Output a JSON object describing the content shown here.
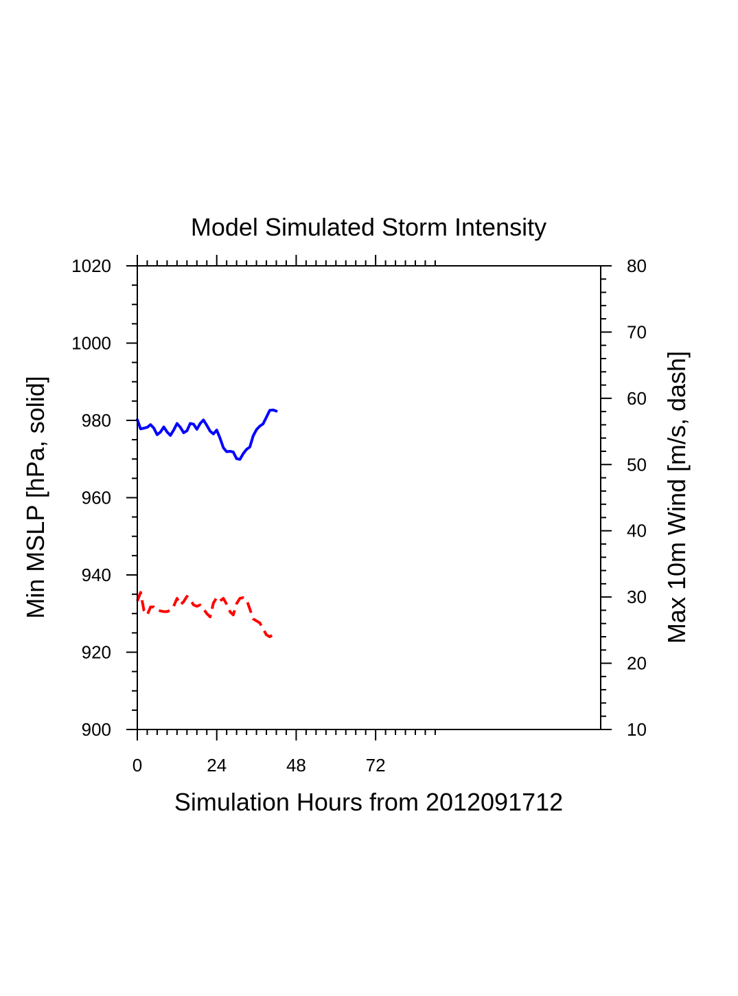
{
  "chart_data": {
    "type": "line",
    "title": "Model Simulated Storm Intensity",
    "xlabel": "Simulation Hours from 2012091712",
    "ylabel_left": "Min MSLP  [hPa, solid]",
    "ylabel_right": "Max 10m Wind  [m/s, dash]",
    "xlim": [
      0,
      140
    ],
    "ylim_left": [
      900,
      1020
    ],
    "ylim_right": [
      10,
      80
    ],
    "x_ticks": [
      0,
      24,
      48,
      72
    ],
    "x_tick_labels": [
      "0",
      "24",
      "48",
      "72"
    ],
    "y_left_ticks": [
      900,
      920,
      940,
      960,
      980,
      1000,
      1020
    ],
    "y_left_tick_labels": [
      "900",
      "920",
      "940",
      "960",
      "980",
      "1000",
      "1020"
    ],
    "y_right_ticks": [
      10,
      20,
      30,
      40,
      50,
      60,
      70,
      80
    ],
    "y_right_tick_labels": [
      "10",
      "20",
      "30",
      "40",
      "50",
      "60",
      "70",
      "80"
    ],
    "colors": {
      "mslp": "#0000ff",
      "wind": "#ff0000",
      "axes": "#000000"
    },
    "series": [
      {
        "name": "Min MSLP",
        "axis": "left",
        "style": "solid",
        "x": [
          0,
          1,
          2,
          3,
          4,
          5,
          6,
          7,
          8,
          9,
          10,
          11,
          12,
          13,
          14,
          15,
          16,
          17,
          18,
          19,
          20,
          21,
          22,
          23,
          24,
          25,
          26,
          27,
          28,
          29,
          30,
          31,
          32,
          33,
          34,
          35,
          36,
          37,
          38,
          39,
          40,
          41,
          42
        ],
        "values": [
          980.2,
          977.8,
          978.0,
          978.2,
          978.9,
          978.0,
          976.3,
          977.0,
          978.3,
          977.0,
          976.1,
          977.5,
          979.2,
          978.2,
          976.8,
          977.3,
          979.2,
          979.0,
          977.7,
          979.2,
          980.1,
          978.7,
          977.2,
          976.5,
          977.5,
          975.4,
          972.9,
          971.9,
          972.0,
          971.8,
          970.1,
          969.9,
          971.4,
          972.5,
          973.1,
          976.0,
          977.6,
          978.5,
          979.1,
          980.8,
          982.6,
          982.7,
          982.4
        ]
      },
      {
        "name": "Max 10m Wind",
        "axis": "right",
        "style": "dashed",
        "x": [
          0,
          1,
          2,
          3,
          4,
          5,
          6,
          7,
          8,
          9,
          10,
          11,
          12,
          13,
          14,
          15,
          16,
          17,
          18,
          19,
          20,
          21,
          22,
          23,
          24,
          25,
          26,
          27,
          28,
          29,
          30,
          31,
          32,
          33,
          34,
          35,
          36,
          37,
          38,
          39,
          40,
          41,
          42
        ],
        "values": [
          29.4,
          30.7,
          28.0,
          27.3,
          28.5,
          28.5,
          28.0,
          27.9,
          27.8,
          27.8,
          28.0,
          28.6,
          29.8,
          28.8,
          29.3,
          30.1,
          29.6,
          28.8,
          28.6,
          28.8,
          28.2,
          27.5,
          27.0,
          29.1,
          29.9,
          29.4,
          29.8,
          28.9,
          27.8,
          27.3,
          29.0,
          29.8,
          29.9,
          29.6,
          28.2,
          26.7,
          26.4,
          26.1,
          25.2,
          24.3,
          24.0,
          24.3,
          24.2
        ]
      }
    ]
  }
}
